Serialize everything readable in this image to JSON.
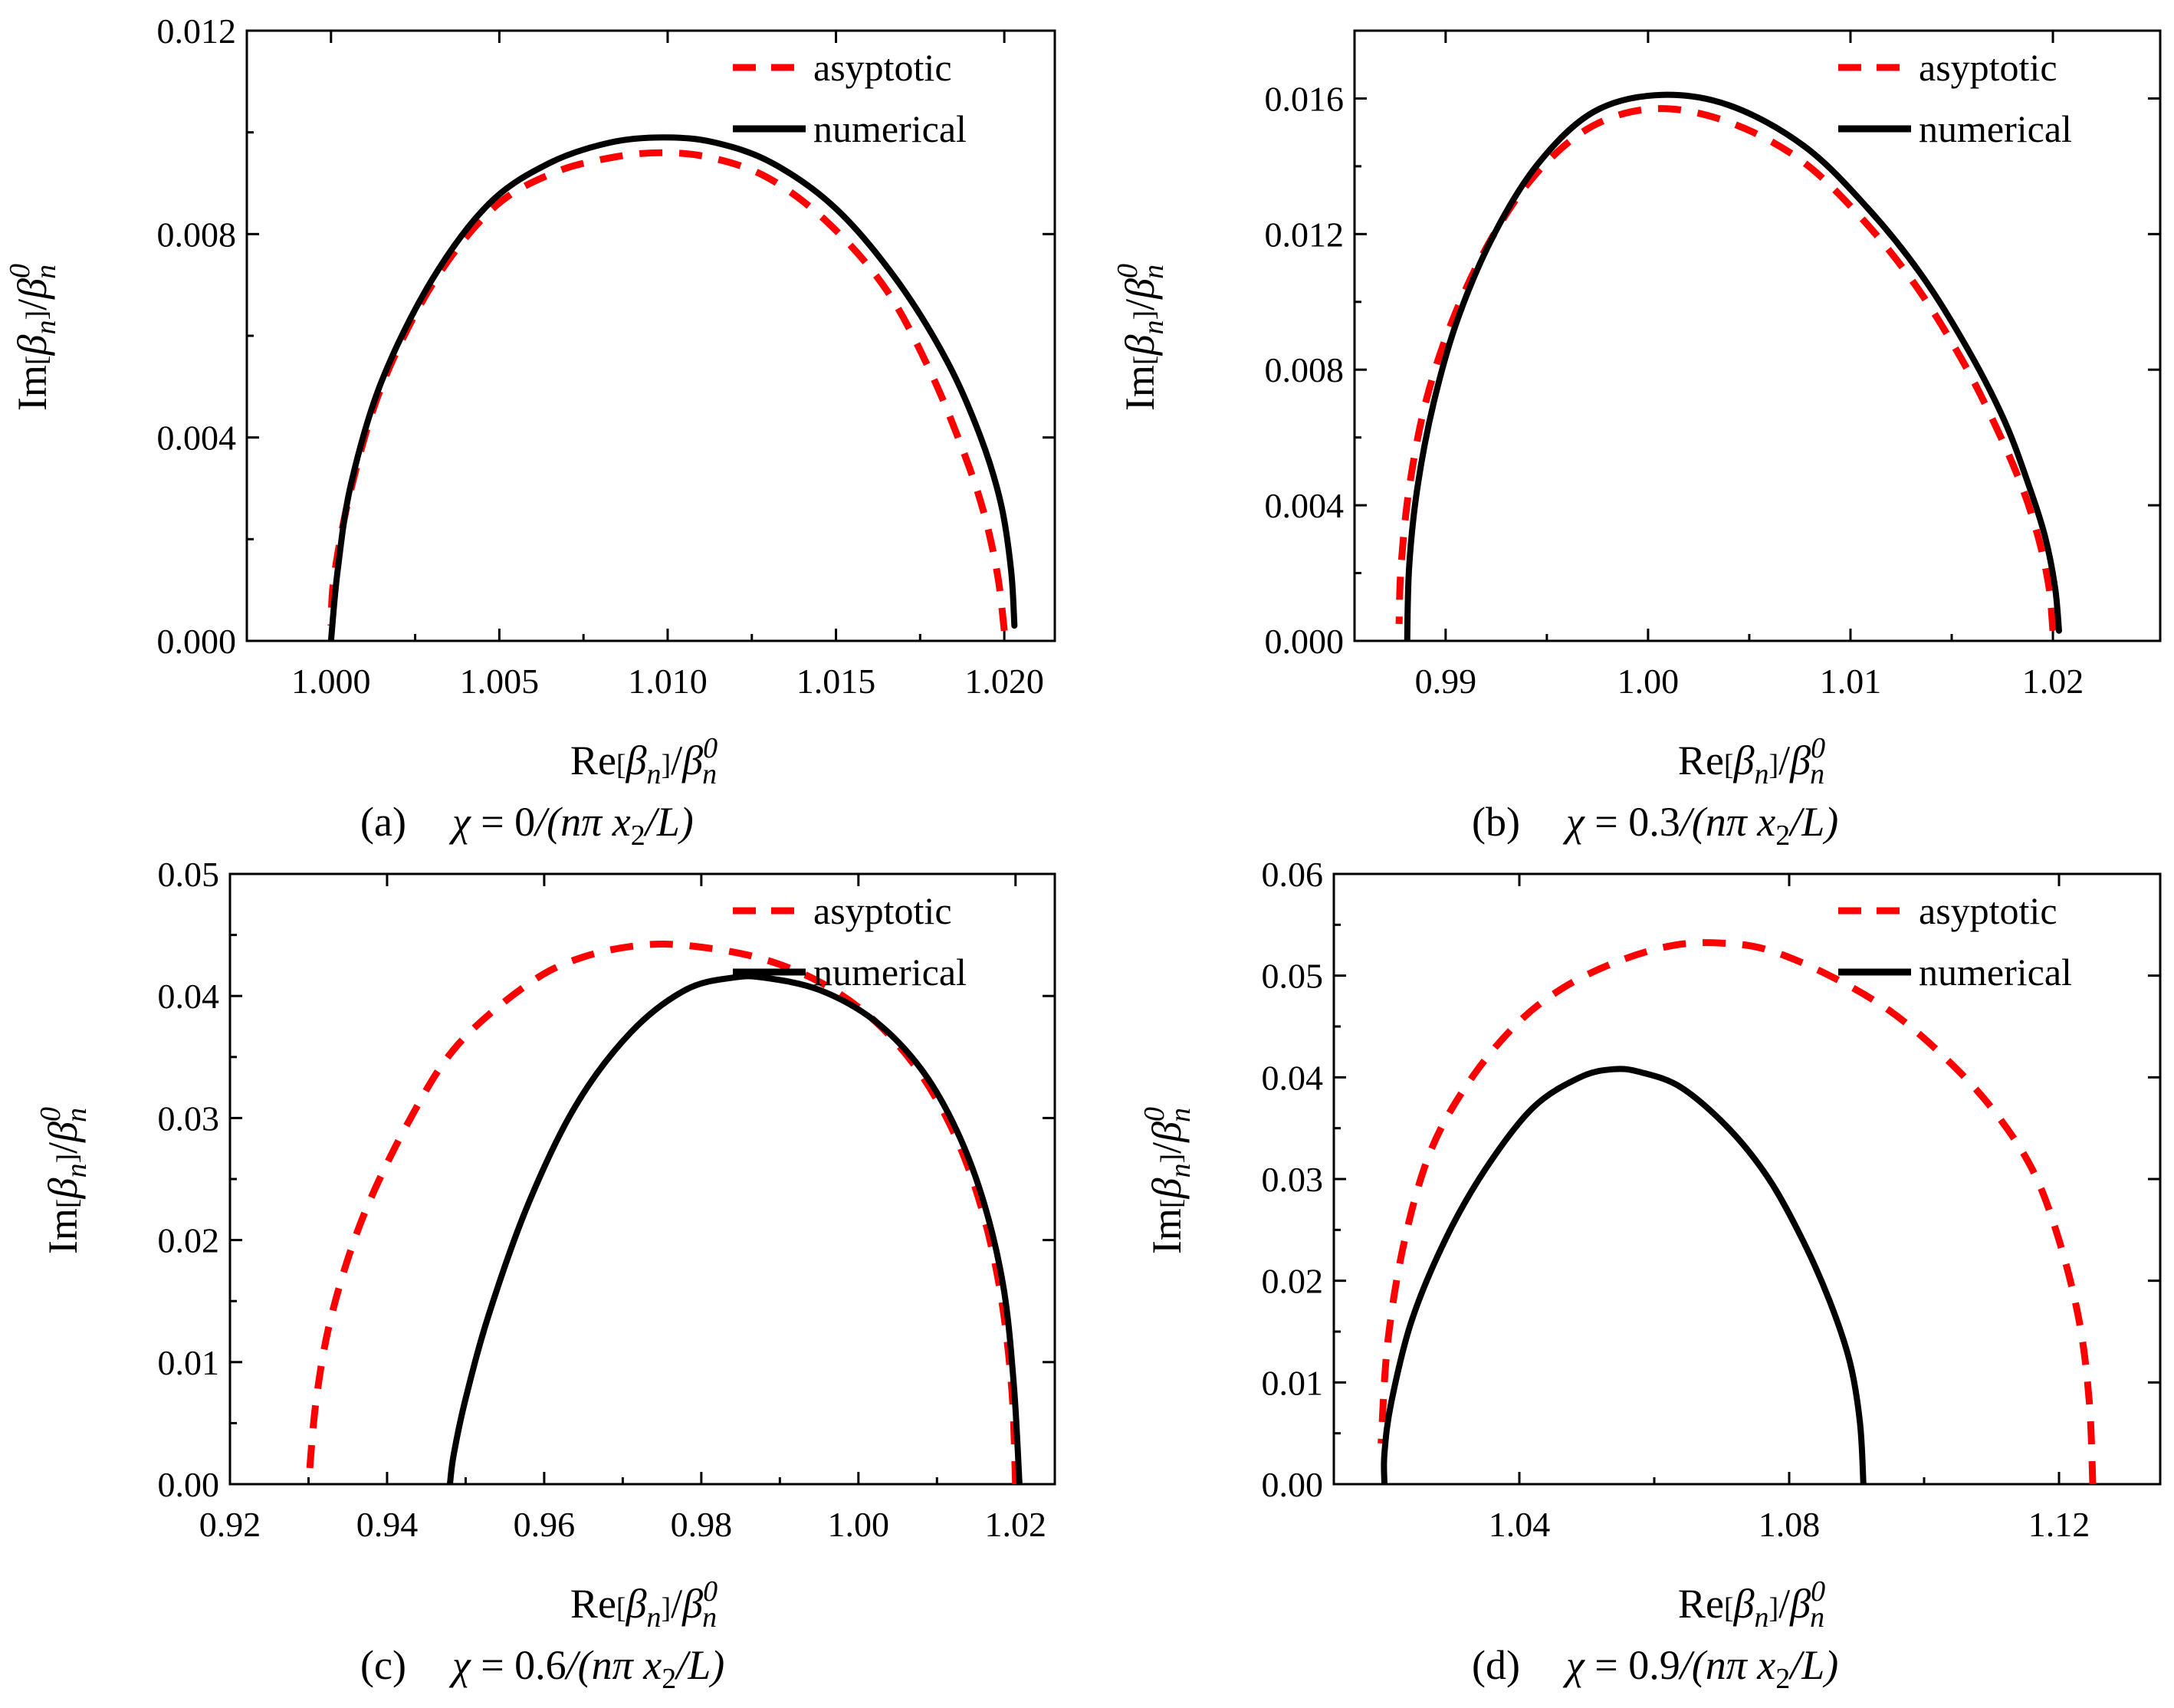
{
  "figure": {
    "panels": [
      {
        "label": "(a)",
        "chi_value": "0",
        "caption_tail": "/(nπ x",
        "caption_sub": "2",
        "caption_end": "/L)",
        "xlabel_pre": "Re",
        "ylabel_pre": "Im",
        "beta": "β",
        "sub_n": "n",
        "sup_0": "0"
      },
      {
        "label": "(b)",
        "chi_value": "0.3",
        "caption_tail": "/(nπ x",
        "caption_sub": "2",
        "caption_end": "/L)",
        "xlabel_pre": "Re",
        "ylabel_pre": "Im",
        "beta": "β",
        "sub_n": "n",
        "sup_0": "0"
      },
      {
        "label": "(c)",
        "chi_value": "0.6",
        "caption_tail": "/(nπ x",
        "caption_sub": "2",
        "caption_end": "/L)",
        "xlabel_pre": "Re",
        "ylabel_pre": "Im",
        "beta": "β",
        "sub_n": "n",
        "sup_0": "0"
      },
      {
        "label": "(d)",
        "chi_value": "0.9",
        "caption_tail": "/(nπ x",
        "caption_sub": "2",
        "caption_end": "/L)",
        "xlabel_pre": "Re",
        "ylabel_pre": "Im",
        "beta": "β",
        "sub_n": "n",
        "sup_0": "0"
      }
    ],
    "chi_symbol": "χ",
    "equals": " = "
  },
  "chart_data": [
    {
      "type": "line",
      "panel": "(a)",
      "xlabel": "Re[βn]/βn0",
      "ylabel": "Im[βn]/βn0",
      "xlim": [
        0.9975,
        1.0215
      ],
      "ylim": [
        0.0,
        0.012
      ],
      "xticks": [
        1.0,
        1.005,
        1.01,
        1.015,
        1.02
      ],
      "xtick_labels": [
        "1.000",
        "1.005",
        "1.010",
        "1.015",
        "1.020"
      ],
      "yticks": [
        0.0,
        0.004,
        0.008,
        0.012
      ],
      "ytick_labels": [
        "0.000",
        "0.004",
        "0.008",
        "0.012"
      ],
      "legend_position": "top-right",
      "series": [
        {
          "name": "asyptotic",
          "color": "#ff0000",
          "dash": "dashed",
          "x": [
            1.02,
            1.0198,
            1.0194,
            1.0188,
            1.0178,
            1.0165,
            1.0148,
            1.013,
            1.0113,
            1.0098,
            1.0083,
            1.0066,
            1.0048,
            1.003,
            1.0015,
            1.0006,
            1.0001,
            1.0
          ],
          "y": [
            0.0002,
            0.0013,
            0.0025,
            0.0037,
            0.0053,
            0.0069,
            0.0082,
            0.0091,
            0.0095,
            0.0096,
            0.0095,
            0.0092,
            0.0085,
            0.007,
            0.005,
            0.003,
            0.0013,
            0.0003
          ]
        },
        {
          "name": "numerical",
          "color": "#000000",
          "dash": "solid",
          "x": [
            1.0203,
            1.0202,
            1.0199,
            1.0193,
            1.0183,
            1.0168,
            1.015,
            1.0131,
            1.0114,
            1.0099,
            1.0083,
            1.0065,
            1.0047,
            1.003,
            1.0015,
            1.0006,
            1.0002,
            1.0
          ],
          "y": [
            0.0003,
            0.0014,
            0.0027,
            0.004,
            0.0055,
            0.0071,
            0.0085,
            0.0094,
            0.0098,
            0.0099,
            0.0098,
            0.0094,
            0.0086,
            0.0071,
            0.0051,
            0.0031,
            0.0014,
            0.0
          ]
        }
      ]
    },
    {
      "type": "line",
      "panel": "(b)",
      "xlabel": "Re[βn]/βn0",
      "ylabel": "Im[βn]/βn0",
      "xlim": [
        0.9855,
        1.0253
      ],
      "ylim": [
        0.0,
        0.018
      ],
      "xticks": [
        0.99,
        1.0,
        1.01,
        1.02
      ],
      "xtick_labels": [
        "0.99",
        "1.00",
        "1.01",
        "1.02"
      ],
      "yticks": [
        0.0,
        0.004,
        0.008,
        0.012,
        0.016
      ],
      "ytick_labels": [
        "0.000",
        "0.004",
        "0.008",
        "0.012",
        "0.016"
      ],
      "legend_position": "top-right",
      "series": [
        {
          "name": "asyptotic",
          "color": "#ff0000",
          "dash": "dashed",
          "x": [
            1.02,
            1.0198,
            1.0193,
            1.0185,
            1.0172,
            1.0155,
            1.0132,
            1.0105,
            1.0075,
            1.004,
            1.0005,
            0.9973,
            0.9945,
            0.9922,
            0.9903,
            0.989,
            0.9882,
            0.9878,
            0.9877
          ],
          "y": [
            0.0003,
            0.0016,
            0.003,
            0.0045,
            0.0063,
            0.0083,
            0.0105,
            0.0125,
            0.0142,
            0.0153,
            0.0157,
            0.0152,
            0.0138,
            0.0118,
            0.0094,
            0.007,
            0.0045,
            0.0022,
            0.0005
          ]
        },
        {
          "name": "numerical",
          "color": "#000000",
          "dash": "solid",
          "x": [
            1.0203,
            1.0201,
            1.0196,
            1.0188,
            1.0176,
            1.0158,
            1.0135,
            1.0108,
            1.0077,
            1.004,
            1.0005,
            0.9973,
            0.9946,
            0.9924,
            0.9906,
            0.9894,
            0.9886,
            0.9882,
            0.9881
          ],
          "y": [
            0.0003,
            0.0016,
            0.0031,
            0.0046,
            0.0065,
            0.0086,
            0.0108,
            0.0128,
            0.0146,
            0.0158,
            0.0161,
            0.0156,
            0.0141,
            0.012,
            0.0095,
            0.007,
            0.0045,
            0.0022,
            0.0
          ]
        }
      ]
    },
    {
      "type": "line",
      "panel": "(c)",
      "xlabel": "Re[βn]/βn0",
      "ylabel": "Im[βn]/βn0",
      "xlim": [
        0.92,
        1.025
      ],
      "ylim": [
        0.0,
        0.05
      ],
      "xticks": [
        0.92,
        0.94,
        0.96,
        0.98,
        1.0,
        1.02
      ],
      "xtick_labels": [
        "0.92",
        "0.94",
        "0.96",
        "0.98",
        "1.00",
        "1.02"
      ],
      "yticks": [
        0.0,
        0.01,
        0.02,
        0.03,
        0.04,
        0.05
      ],
      "ytick_labels": [
        "0.00",
        "0.01",
        "0.02",
        "0.03",
        "0.04",
        "0.05"
      ],
      "legend_position": "top-right",
      "series": [
        {
          "name": "asyptotic",
          "color": "#ff0000",
          "dash": "dashed",
          "x": [
            1.02,
            1.0195,
            1.018,
            1.0155,
            1.012,
            1.0075,
            1.002,
            0.9955,
            0.988,
            0.98,
            0.973,
            0.965,
            0.958,
            0.949,
            0.943,
            0.937,
            0.933,
            0.931,
            0.93
          ],
          "y": [
            0.0,
            0.008,
            0.016,
            0.023,
            0.029,
            0.034,
            0.038,
            0.041,
            0.043,
            0.044,
            0.0442,
            0.0432,
            0.041,
            0.036,
            0.03,
            0.022,
            0.014,
            0.007,
            0.0
          ]
        },
        {
          "name": "numerical",
          "color": "#000000",
          "dash": "solid",
          "x": [
            1.0205,
            1.0198,
            1.0185,
            1.016,
            1.0125,
            1.008,
            1.002,
            0.995,
            0.988,
            0.984,
            0.978,
            0.971,
            0.964,
            0.958,
            0.953,
            0.95,
            0.9485,
            0.948
          ],
          "y": [
            0.0,
            0.008,
            0.016,
            0.023,
            0.029,
            0.034,
            0.038,
            0.0405,
            0.0415,
            0.0415,
            0.0405,
            0.037,
            0.031,
            0.023,
            0.014,
            0.007,
            0.0025,
            0.0
          ]
        }
      ]
    },
    {
      "type": "line",
      "panel": "(d)",
      "xlabel": "Re[βn]/βn0",
      "ylabel": "Im[βn]/βn0",
      "xlim": [
        1.0125,
        1.135
      ],
      "ylim": [
        0.0,
        0.06
      ],
      "xticks": [
        1.04,
        1.08,
        1.12
      ],
      "xtick_labels": [
        "1.04",
        "1.08",
        "1.12"
      ],
      "yticks": [
        0.0,
        0.01,
        0.02,
        0.03,
        0.04,
        0.05,
        0.06
      ],
      "ytick_labels": [
        "0.00",
        "0.01",
        "0.02",
        "0.03",
        "0.04",
        "0.05",
        "0.06"
      ],
      "legend_position": "top-right",
      "series": [
        {
          "name": "asyptotic",
          "color": "#ff0000",
          "dash": "dashed",
          "x": [
            1.125,
            1.1245,
            1.123,
            1.12,
            1.116,
            1.11,
            1.103,
            1.095,
            1.086,
            1.077,
            1.07,
            1.063,
            1.055,
            1.047,
            1.04,
            1.033,
            1.027,
            1.023,
            1.0205,
            1.0195
          ],
          "y": [
            0.0,
            0.008,
            0.016,
            0.024,
            0.031,
            0.037,
            0.042,
            0.0465,
            0.05,
            0.0525,
            0.0532,
            0.053,
            0.0515,
            0.049,
            0.0455,
            0.04,
            0.033,
            0.024,
            0.014,
            0.004
          ]
        },
        {
          "name": "numerical",
          "color": "#000000",
          "dash": "solid",
          "x": [
            1.091,
            1.0905,
            1.089,
            1.086,
            1.082,
            1.077,
            1.071,
            1.064,
            1.058,
            1.054,
            1.049,
            1.042,
            1.035,
            1.029,
            1.024,
            1.021,
            1.02,
            1.02
          ],
          "y": [
            0.0,
            0.006,
            0.012,
            0.018,
            0.024,
            0.03,
            0.035,
            0.039,
            0.0405,
            0.0408,
            0.04,
            0.037,
            0.031,
            0.024,
            0.016,
            0.008,
            0.003,
            0.0
          ]
        }
      ]
    }
  ]
}
